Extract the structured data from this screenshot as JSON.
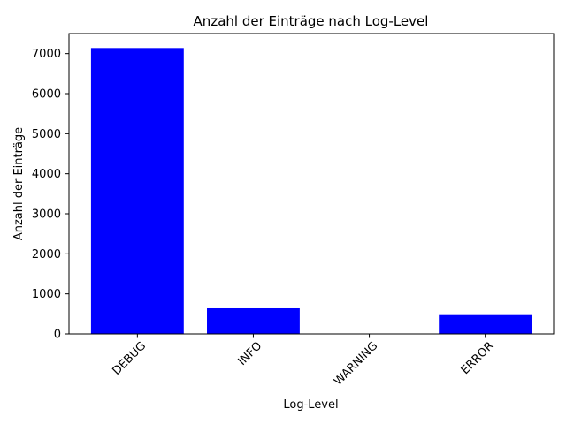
{
  "chart_data": {
    "type": "bar",
    "title": "Anzahl der Einträge nach Log-Level",
    "xlabel": "Log-Level",
    "ylabel": "Anzahl der Einträge",
    "categories": [
      "DEBUG",
      "INFO",
      "WARNING",
      "ERROR"
    ],
    "values": [
      7140,
      640,
      5,
      470
    ],
    "ylim": [
      0,
      7500
    ],
    "yticks": [
      0,
      1000,
      2000,
      3000,
      4000,
      5000,
      6000,
      7000
    ],
    "bar_color": "#0000ff",
    "grid": false,
    "legend": "none"
  }
}
